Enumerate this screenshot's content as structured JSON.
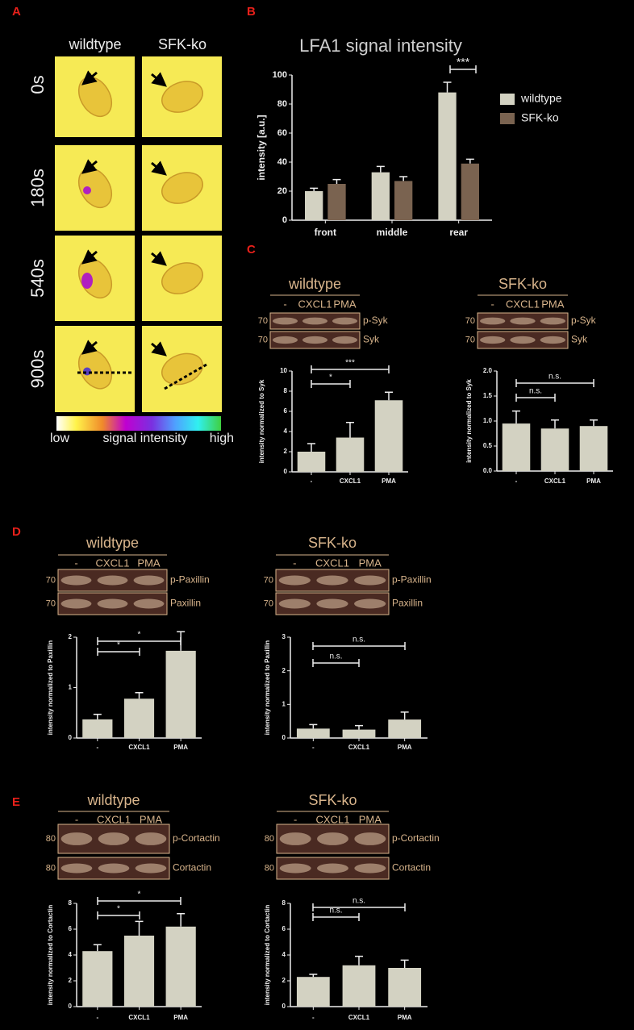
{
  "panel_labels": [
    "A",
    "B",
    "C",
    "D",
    "E"
  ],
  "microscopy": {
    "columns": [
      "wildtype",
      "SFK-ko"
    ],
    "times": [
      "0s",
      "180s",
      "540s",
      "900s"
    ],
    "colorbar": {
      "low": "low",
      "label": "signal intensity",
      "high": "high"
    }
  },
  "chart_data": [
    {
      "type": "grouped_bar",
      "title": "LFA1 signal intensity",
      "y_label": "intensity [a.u.]",
      "categories": [
        "front",
        "middle",
        "rear"
      ],
      "series": [
        {
          "name": "wildtype",
          "color": "#d3d2c2",
          "values": [
            20,
            33,
            88
          ],
          "errors": [
            2,
            4,
            7
          ]
        },
        {
          "name": "SFK-ko",
          "color": "#7a6350",
          "values": [
            25,
            27,
            39
          ],
          "errors": [
            3,
            3,
            3
          ]
        }
      ],
      "ylim": [
        0,
        100
      ],
      "yticks": [
        0,
        20,
        40,
        60,
        80,
        100
      ],
      "legend": "right",
      "annotations": [
        {
          "text": "***"
        }
      ]
    },
    {
      "type": "bar",
      "y_label": "intensity normalized to Syk",
      "categories": [
        "-",
        "CXCL1",
        "PMA"
      ],
      "values": [
        2,
        3.4,
        7.1
      ],
      "errors": [
        0.8,
        1.5,
        0.8
      ],
      "color": "#d3d2c2",
      "ylim": [
        0,
        10
      ],
      "yticks": [
        0,
        2,
        4,
        6,
        8,
        10
      ],
      "annotations": [
        {
          "text": "*"
        },
        {
          "text": "***"
        }
      ],
      "blot": {
        "title": "wildtype",
        "lanes": [
          "-",
          "CXCL1",
          "PMA"
        ],
        "bands": [
          {
            "label": "p-Syk",
            "mw": 70
          },
          {
            "label": "Syk",
            "mw": 70
          }
        ]
      }
    },
    {
      "type": "bar",
      "y_label": "intensity normalized to Syk",
      "categories": [
        "-",
        "CXCL1",
        "PMA"
      ],
      "values": [
        0.95,
        0.85,
        0.9
      ],
      "errors": [
        0.25,
        0.17,
        0.12
      ],
      "color": "#d3d2c2",
      "ylim": [
        0,
        2
      ],
      "yticks": [
        {
          "value": 0,
          "label": "0.0"
        },
        {
          "value": 0.5,
          "label": "0.5"
        },
        {
          "value": 1,
          "label": "1.0"
        },
        {
          "value": 1.5,
          "label": "1.5"
        },
        {
          "value": 2,
          "label": "2.0"
        }
      ],
      "annotations": [
        {
          "text": "n.s."
        },
        {
          "text": "n.s."
        }
      ],
      "blot": {
        "title": "SFK-ko",
        "lanes": [
          "-",
          "CXCL1",
          "PMA"
        ],
        "bands": [
          {
            "label": "p-Syk",
            "mw": 70
          },
          {
            "label": "Syk",
            "mw": 70
          }
        ]
      }
    },
    {
      "type": "bar",
      "y_label": "intensity normalized to Paxillin",
      "categories": [
        "-",
        "CXCL1",
        "PMA"
      ],
      "values": [
        0.37,
        0.78,
        1.73
      ],
      "errors": [
        0.1,
        0.12,
        0.38
      ],
      "color": "#d3d2c2",
      "ylim": [
        0,
        2
      ],
      "yticks": [
        0,
        1,
        2
      ],
      "annotations": [
        {
          "text": "*"
        },
        {
          "text": "*"
        }
      ],
      "blot": {
        "title": "wildtype",
        "lanes": [
          "-",
          "CXCL1",
          "PMA"
        ],
        "bands": [
          {
            "label": "p-Paxillin",
            "mw": 70
          },
          {
            "label": "Paxillin",
            "mw": 70
          }
        ]
      }
    },
    {
      "type": "bar",
      "y_label": "intensity normalized to Paxillin",
      "categories": [
        "-",
        "CXCL1",
        "PMA"
      ],
      "values": [
        0.28,
        0.25,
        0.55
      ],
      "errors": [
        0.12,
        0.12,
        0.22
      ],
      "color": "#d3d2c2",
      "ylim": [
        0,
        3
      ],
      "yticks": [
        0,
        1,
        2,
        3
      ],
      "annotations": [
        {
          "text": "n.s."
        },
        {
          "text": "n.s."
        }
      ],
      "blot": {
        "title": "SFK-ko",
        "lanes": [
          "-",
          "CXCL1",
          "PMA"
        ],
        "bands": [
          {
            "label": "p-Paxillin",
            "mw": 70
          },
          {
            "label": "Paxillin",
            "mw": 70
          }
        ]
      }
    },
    {
      "type": "bar",
      "y_label": "intensity normalized to Cortactin",
      "categories": [
        "-",
        "CXCL1",
        "PMA"
      ],
      "values": [
        4.3,
        5.5,
        6.2
      ],
      "errors": [
        0.5,
        1.1,
        1.0
      ],
      "color": "#d3d2c2",
      "ylim": [
        0,
        8
      ],
      "yticks": [
        0,
        2,
        4,
        6,
        8
      ],
      "annotations": [
        {
          "text": "*"
        },
        {
          "text": "*"
        }
      ],
      "blot": {
        "title": "wildtype",
        "lanes": [
          "-",
          "CXCL1",
          "PMA"
        ],
        "bands": [
          {
            "label": "p-Cortactin",
            "mw": 80
          },
          {
            "label": "Cortactin",
            "mw": 80
          }
        ]
      }
    },
    {
      "type": "bar",
      "y_label": "intensity normalized to Cortactin",
      "categories": [
        "-",
        "CXCL1",
        "PMA"
      ],
      "values": [
        2.3,
        3.2,
        3.0
      ],
      "errors": [
        0.2,
        0.7,
        0.6
      ],
      "color": "#d3d2c2",
      "ylim": [
        0,
        8
      ],
      "yticks": [
        0,
        2,
        4,
        6,
        8
      ],
      "annotations": [
        {
          "text": "n.s."
        },
        {
          "text": "n.s."
        }
      ],
      "blot": {
        "title": "SFK-ko",
        "lanes": [
          "-",
          "CXCL1",
          "PMA"
        ],
        "bands": [
          {
            "label": "p-Cortactin",
            "mw": 80
          },
          {
            "label": "Cortactin",
            "mw": 80
          }
        ]
      }
    }
  ]
}
